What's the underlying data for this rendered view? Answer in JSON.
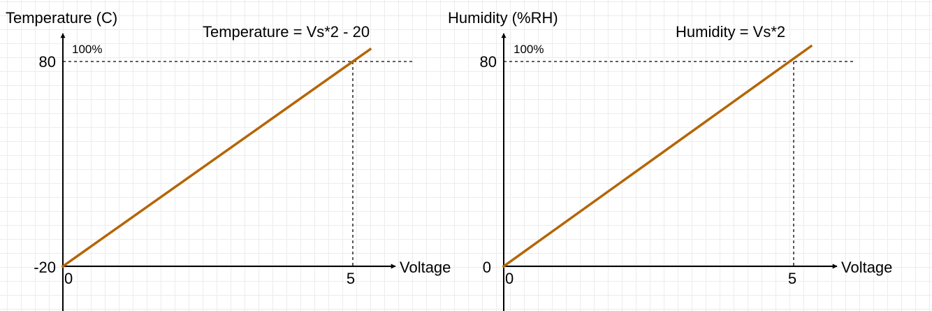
{
  "colors": {
    "line": "#b46504",
    "axis": "#000000"
  },
  "chart_data": [
    {
      "type": "line",
      "title": "Temperature = Vs*2 - 20",
      "xlabel": "Voltage",
      "ylabel": "Temperature (C)",
      "x_ticks": [
        "0",
        "5"
      ],
      "y_ticks": [
        "-20",
        "80"
      ],
      "y_top_annotation": "100%",
      "xlim": [
        0,
        5
      ],
      "ylim": [
        -20,
        80
      ],
      "series": [
        {
          "x": [
            0,
            5.3
          ],
          "y": [
            -20,
            86
          ]
        }
      ],
      "reference_point": {
        "x": 5,
        "y": 80
      }
    },
    {
      "type": "line",
      "title": "Humidity = Vs*2",
      "xlabel": "Voltage",
      "ylabel": "Humidity (%RH)",
      "x_ticks": [
        "0",
        "5"
      ],
      "y_ticks": [
        "0",
        "80"
      ],
      "y_top_annotation": "100%",
      "xlim": [
        0,
        5
      ],
      "ylim": [
        0,
        80
      ],
      "series": [
        {
          "x": [
            0,
            5.3
          ],
          "y": [
            0,
            86
          ]
        }
      ],
      "reference_point": {
        "x": 5,
        "y": 80
      }
    }
  ]
}
